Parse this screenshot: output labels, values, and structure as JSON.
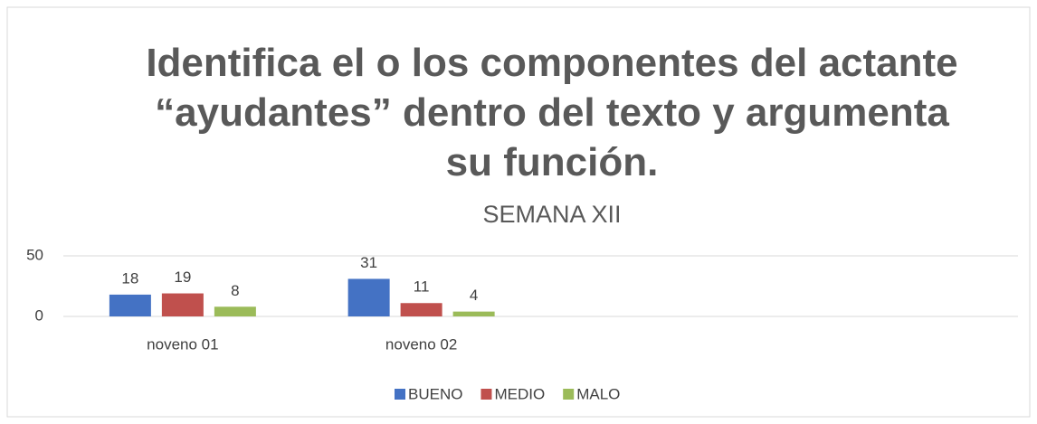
{
  "chart_data": {
    "type": "bar",
    "title": "Identifica el o los componentes del actante “ayudantes” dentro del texto y argumenta su función.",
    "subtitle": "SEMANA XII",
    "categories": [
      "noveno 01",
      "noveno 02",
      null,
      null
    ],
    "series": [
      {
        "name": "BUENO",
        "color": "#4472c4",
        "values": [
          18,
          31,
          null,
          null
        ]
      },
      {
        "name": "MEDIO",
        "color": "#c0504d",
        "values": [
          19,
          11,
          null,
          null
        ]
      },
      {
        "name": "MALO",
        "color": "#9bbb59",
        "values": [
          8,
          4,
          null,
          null
        ]
      }
    ],
    "ylim": [
      0,
      50
    ],
    "yticks": [
      0,
      50
    ],
    "grid": true,
    "legend": "bottom"
  }
}
